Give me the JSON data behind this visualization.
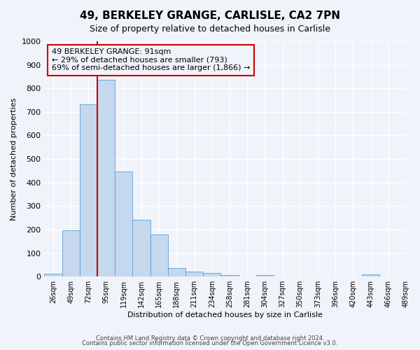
{
  "title": "49, BERKELEY GRANGE, CARLISLE, CA2 7PN",
  "subtitle": "Size of property relative to detached houses in Carlisle",
  "xlabel": "Distribution of detached houses by size in Carlisle",
  "ylabel": "Number of detached properties",
  "bar_values": [
    13,
    196,
    733,
    835,
    448,
    241,
    178,
    35,
    22,
    16,
    8,
    0,
    6,
    0,
    0,
    0,
    0,
    0,
    9,
    0
  ],
  "bin_labels": [
    "26sqm",
    "49sqm",
    "72sqm",
    "95sqm",
    "119sqm",
    "142sqm",
    "165sqm",
    "188sqm",
    "211sqm",
    "234sqm",
    "258sqm",
    "281sqm",
    "304sqm",
    "327sqm",
    "350sqm",
    "373sqm",
    "396sqm",
    "420sqm",
    "443sqm",
    "466sqm",
    "489sqm"
  ],
  "bar_color": "#c5d8ed",
  "bar_edge_color": "#5a9fd4",
  "ylim": [
    0,
    1000
  ],
  "yticks": [
    0,
    100,
    200,
    300,
    400,
    500,
    600,
    700,
    800,
    900,
    1000
  ],
  "property_size": 91,
  "vline_x_index": 3,
  "vline_color": "#cc0000",
  "annotation_title": "49 BERKELEY GRANGE: 91sqm",
  "annotation_line1": "← 29% of detached houses are smaller (793)",
  "annotation_line2": "69% of semi-detached houses are larger (1,866) →",
  "annotation_box_color": "#cc0000",
  "footnote1": "Contains HM Land Registry data © Crown copyright and database right 2024.",
  "footnote2": "Contains public sector information licensed under the Open Government Licence v3.0.",
  "bg_color": "#f0f4fa",
  "grid_color": "#ffffff"
}
